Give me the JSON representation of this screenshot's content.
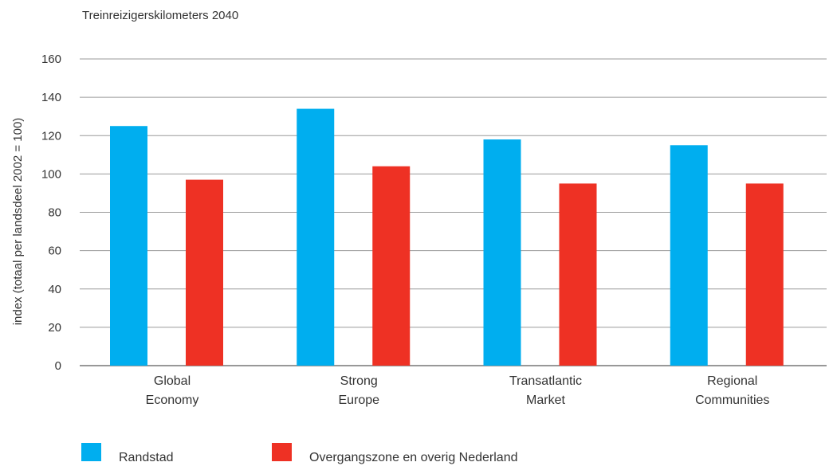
{
  "chart_data": {
    "type": "bar",
    "title": "Treinreizigerskilometers 2040",
    "ylabel": "index (totaal per landsdeel 2002 = 100)",
    "xlabel": "",
    "ylim": [
      0,
      160
    ],
    "yticks": [
      0,
      20,
      40,
      60,
      80,
      100,
      120,
      140,
      160
    ],
    "grid": true,
    "legend_placement": "bottom-left",
    "categories": [
      [
        "Global",
        "Economy"
      ],
      [
        "Strong",
        "Europe"
      ],
      [
        "Transatlantic",
        "Market"
      ],
      [
        "Regional",
        "Communities"
      ]
    ],
    "series": [
      {
        "name": "Randstad",
        "color": "#00aeef",
        "values": [
          125,
          134,
          118,
          115
        ]
      },
      {
        "name": "Overgangszone en overig Nederland",
        "color": "#ee3124",
        "values": [
          97,
          104,
          95,
          95
        ]
      }
    ]
  }
}
